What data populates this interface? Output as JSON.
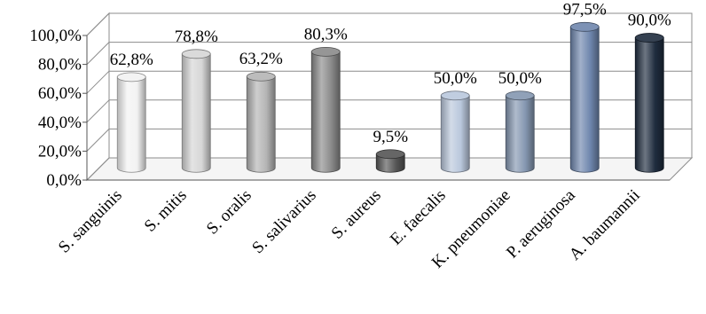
{
  "chart_data": {
    "type": "bar",
    "categories": [
      "S. sanguinis",
      "S. mitis",
      "S. oralis",
      "S. salivarius",
      "S. aureus",
      "E. faecalis",
      "K. pneumoniae",
      "P. aeruginosa",
      "A. baumannii"
    ],
    "values": [
      62.8,
      78.8,
      63.2,
      80.3,
      9.5,
      50.0,
      50.0,
      97.5,
      90.0
    ],
    "data_labels": [
      "62,8%",
      "78,8%",
      "63,2%",
      "80,3%",
      "9,5%",
      "50,0%",
      "50,0%",
      "97,5%",
      "90,0%"
    ],
    "y_ticks": [
      "0,0%",
      "20,0%",
      "40,0%",
      "60,0%",
      "80,0%",
      "100,0%"
    ],
    "ylim": [
      0,
      100
    ],
    "grid": true,
    "style": "3d-cylinder",
    "colors": [
      "#f2f2f2",
      "#d6d6d6",
      "#b4b4b4",
      "#8a8a8a",
      "#555555",
      "#b9c7dc",
      "#8496b0",
      "#6e86ad",
      "#1f2c3e"
    ]
  }
}
